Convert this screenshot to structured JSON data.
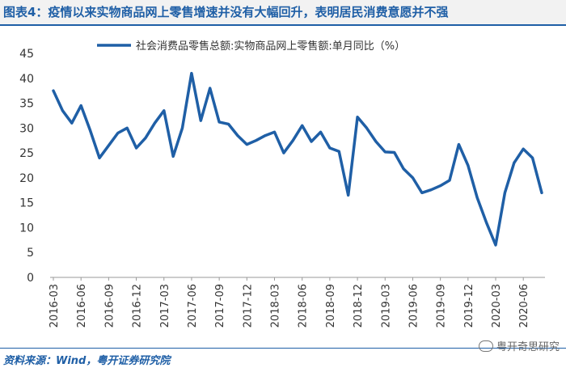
{
  "title": "图表4：疫情以来实物商品网上零售增速并没有大幅回升，表明居民消费意愿并不强",
  "source": "资料来源：Wind，粤开证券研究院",
  "watermark": "粤开奇思研究",
  "colors": {
    "title": "#1f5fa6",
    "line": "#1f5fa6"
  },
  "chart_data": {
    "type": "line",
    "series": [
      {
        "name": "社会消费品零售总额:实物商品网上零售额:单月同比（%）",
        "x": [
          "2016-03",
          "2016-04",
          "2016-05",
          "2016-06",
          "2016-07",
          "2016-08",
          "2016-09",
          "2016-10",
          "2016-11",
          "2016-12",
          "2017-01",
          "2017-02",
          "2017-03",
          "2017-04",
          "2017-05",
          "2017-06",
          "2017-07",
          "2017-08",
          "2017-09",
          "2017-10",
          "2017-11",
          "2017-12",
          "2018-01",
          "2018-02",
          "2018-03",
          "2018-04",
          "2018-05",
          "2018-06",
          "2018-07",
          "2018-08",
          "2018-09",
          "2018-10",
          "2018-11",
          "2018-12",
          "2019-01",
          "2019-02",
          "2019-03",
          "2019-04",
          "2019-05",
          "2019-06",
          "2019-07",
          "2019-08",
          "2019-09",
          "2019-10",
          "2019-11",
          "2019-12",
          "2020-01",
          "2020-02",
          "2020-03",
          "2020-04",
          "2020-05",
          "2020-06",
          "2020-07",
          "2020-08"
        ],
        "values": [
          37.5,
          33.5,
          31.0,
          34.5,
          29.5,
          24.0,
          26.5,
          29.0,
          30.0,
          26.0,
          28.0,
          31.0,
          33.5,
          24.3,
          30.0,
          41.0,
          31.5,
          38.0,
          31.2,
          30.8,
          28.5,
          26.7,
          27.5,
          28.5,
          29.2,
          25.0,
          27.5,
          30.5,
          27.3,
          29.2,
          26.0,
          25.3,
          16.5,
          32.2,
          30.0,
          27.3,
          25.2,
          25.1,
          21.8,
          20.0,
          17.0,
          17.6,
          18.4,
          19.5,
          26.7,
          22.5,
          16.0,
          11.0,
          6.5,
          17.0,
          23.0,
          25.8,
          24.0,
          17.0
        ]
      }
    ],
    "tick_labels": [
      "2016-03",
      "2016-06",
      "2016-09",
      "2016-12",
      "2017-03",
      "2017-06",
      "2017-09",
      "2017-12",
      "2018-03",
      "2018-06",
      "2018-09",
      "2018-12",
      "2019-03",
      "2019-06",
      "2019-09",
      "2019-12",
      "2020-03",
      "2020-06"
    ],
    "yticks": [
      0,
      5,
      10,
      15,
      20,
      25,
      30,
      35,
      40,
      45
    ],
    "ylim": [
      0,
      45
    ],
    "legend_position": "top-center",
    "grid": false
  }
}
